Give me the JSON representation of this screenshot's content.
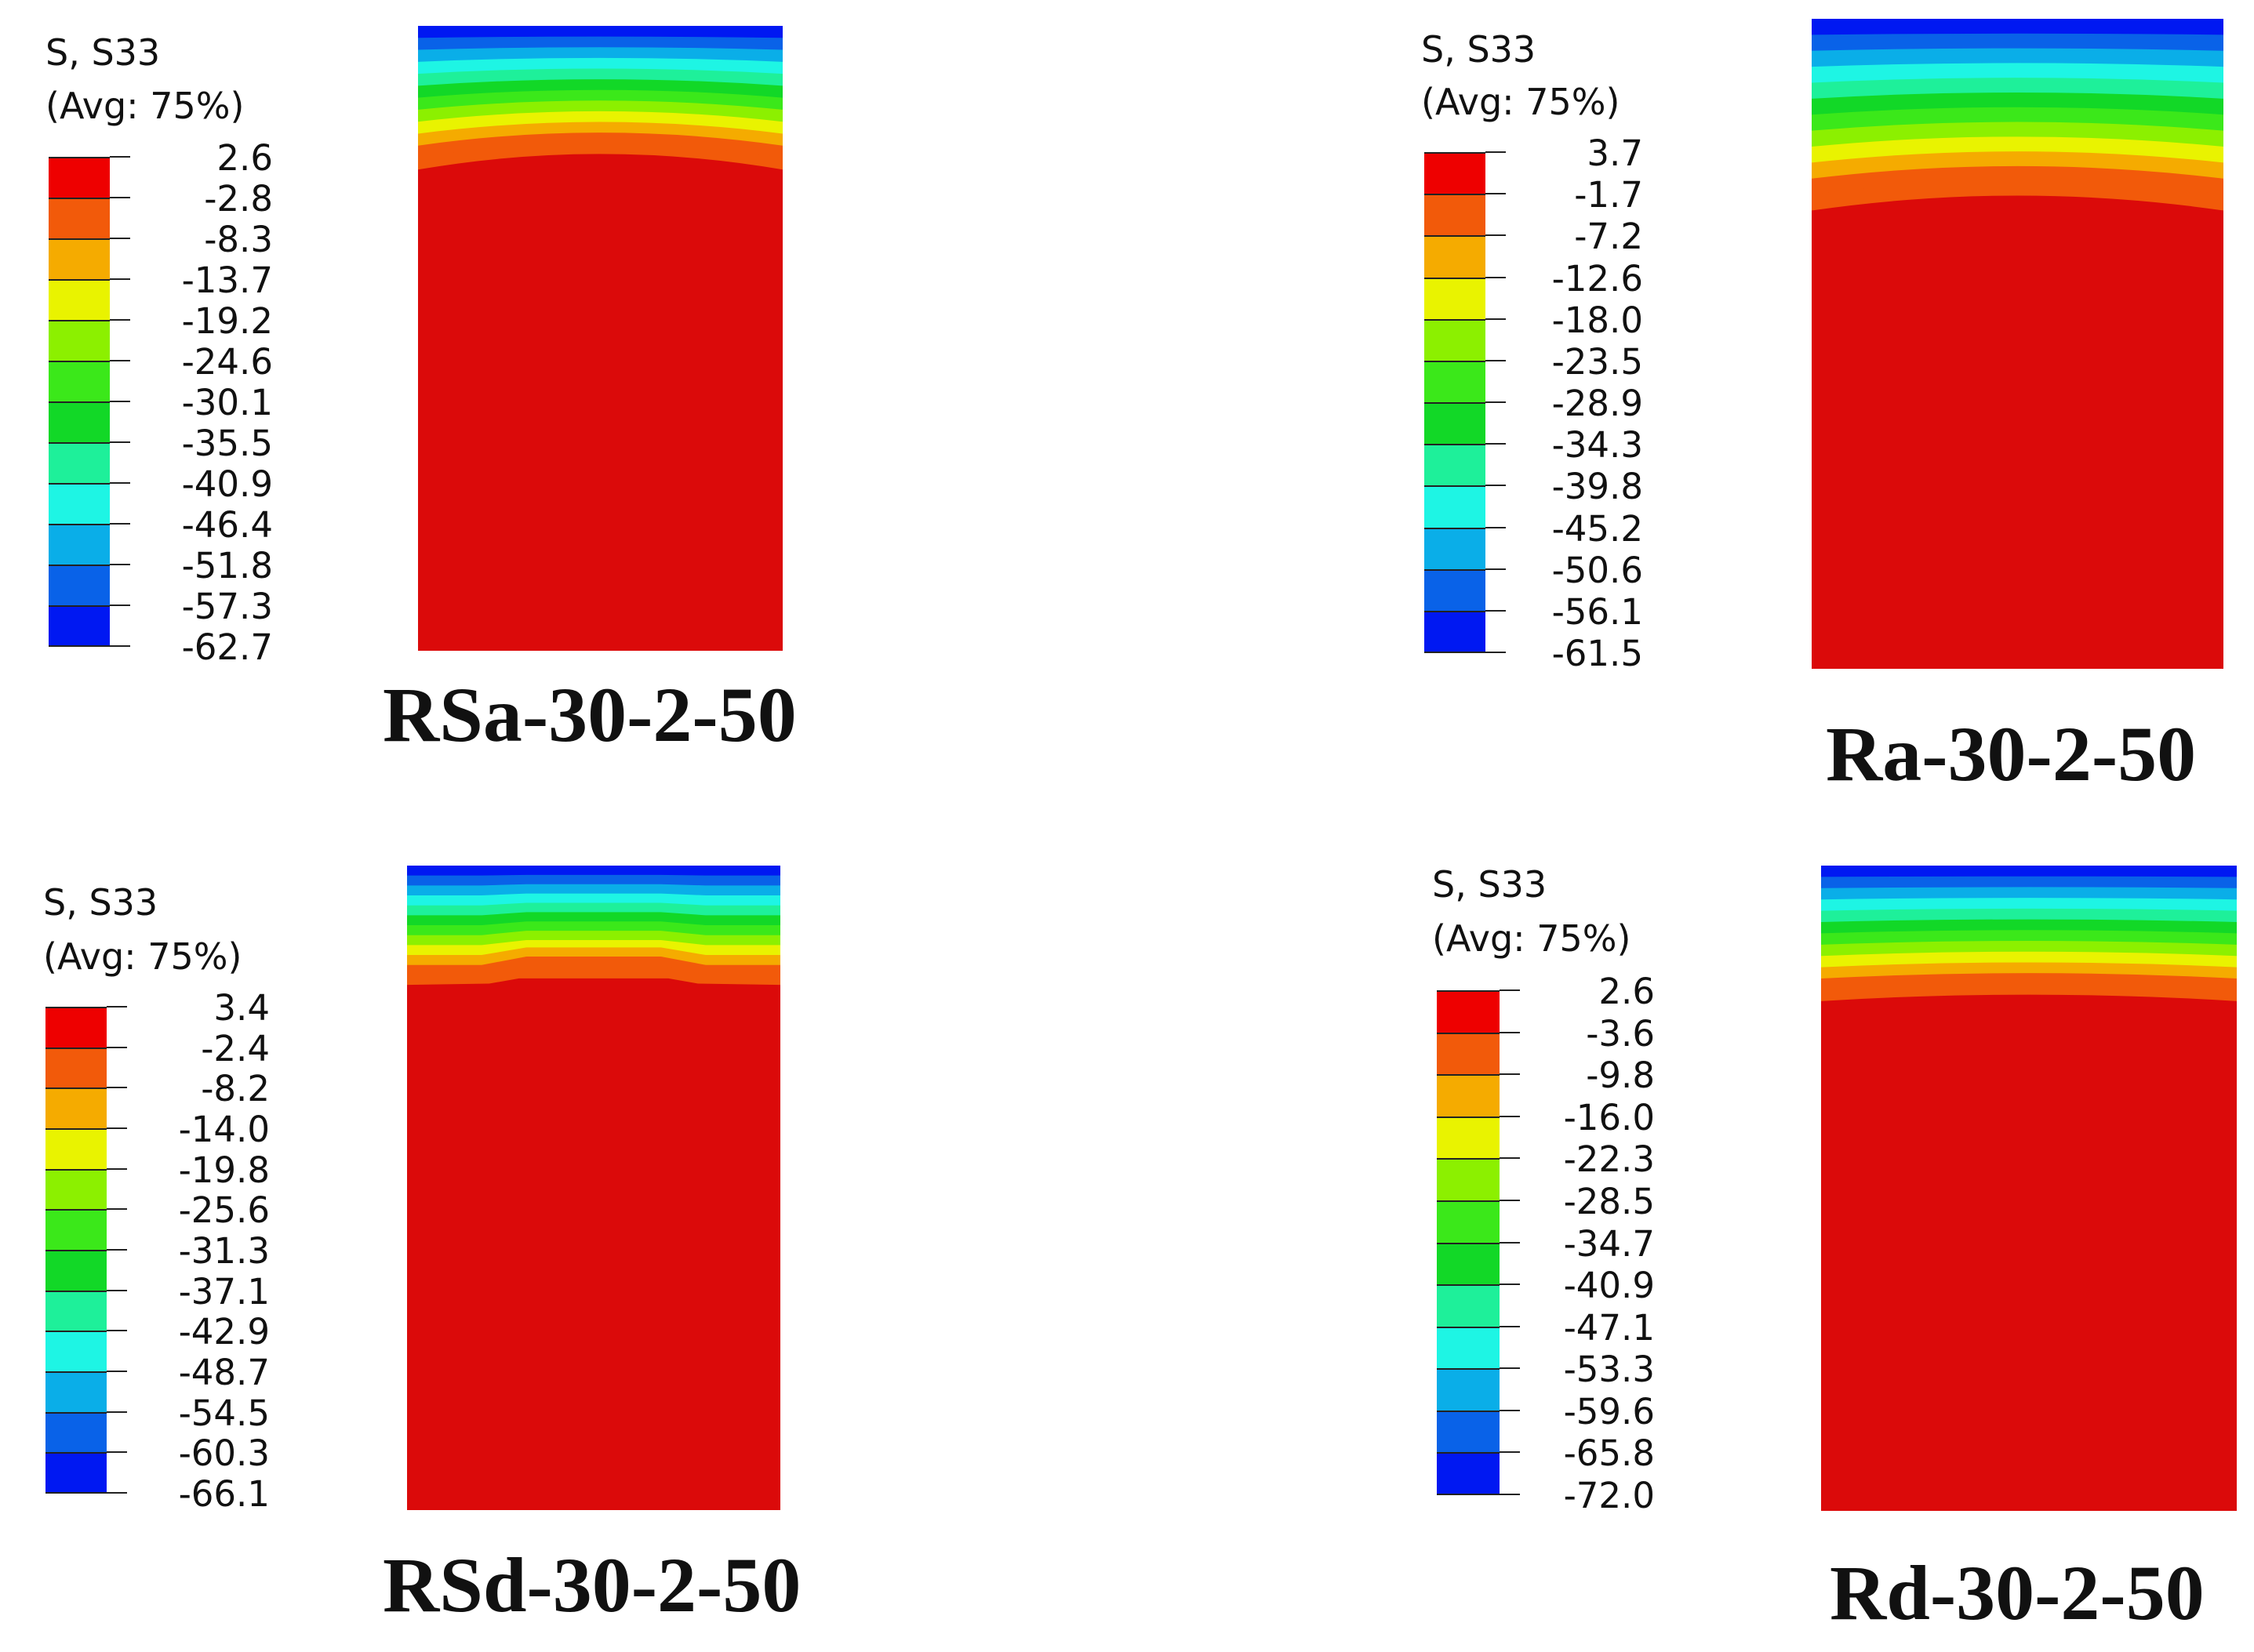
{
  "figure": {
    "legend_palette": [
      "#ee0000",
      "#f25a0a",
      "#f5ab00",
      "#e9f300",
      "#8cf000",
      "#3be81a",
      "#12d827",
      "#1ef09a",
      "#1ef5e4",
      "#0aaee8",
      "#0962e8",
      "#0018f2"
    ],
    "panels": [
      {
        "id": "rsa",
        "caption": "RSa-30-2-50",
        "legend_line1": "S, S33",
        "legend_line2": "(Avg: 75%)",
        "values": [
          "2.6",
          "-2.8",
          "-8.3",
          "-13.7",
          "-19.2",
          "-24.6",
          "-30.1",
          "-35.5",
          "-40.9",
          "-46.4",
          "-51.8",
          "-57.3",
          "-62.7"
        ]
      },
      {
        "id": "ra",
        "caption": "Ra-30-2-50",
        "legend_line1": "S, S33",
        "legend_line2": "(Avg: 75%)",
        "values": [
          "3.7",
          "-1.7",
          "-7.2",
          "-12.6",
          "-18.0",
          "-23.5",
          "-28.9",
          "-34.3",
          "-39.8",
          "-45.2",
          "-50.6",
          "-56.1",
          "-61.5"
        ]
      },
      {
        "id": "rsd",
        "caption": "RSd-30-2-50",
        "legend_line1": "S, S33",
        "legend_line2": "(Avg: 75%)",
        "values": [
          "3.4",
          "-2.4",
          "-8.2",
          "-14.0",
          "-19.8",
          "-25.6",
          "-31.3",
          "-37.1",
          "-42.9",
          "-48.7",
          "-54.5",
          "-60.3",
          "-66.1"
        ]
      },
      {
        "id": "rd",
        "caption": "Rd-30-2-50",
        "legend_line1": "S, S33",
        "legend_line2": "(Avg: 75%)",
        "values": [
          "2.6",
          "-3.6",
          "-9.8",
          "-16.0",
          "-22.3",
          "-28.5",
          "-34.7",
          "-40.9",
          "-47.1",
          "-53.3",
          "-59.6",
          "-65.8",
          "-72.0"
        ]
      }
    ]
  }
}
